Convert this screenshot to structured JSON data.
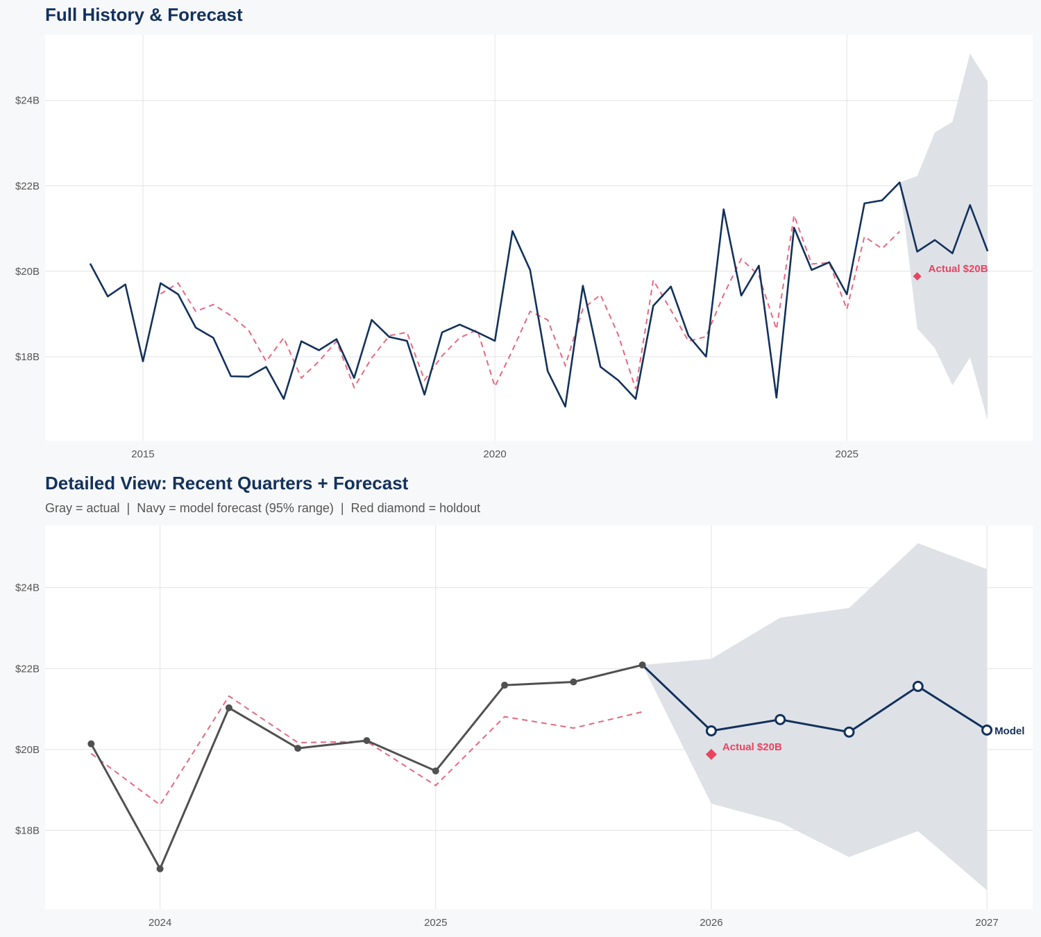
{
  "colors": {
    "actual_navy": "#13315c",
    "actual_gray": "#505050",
    "fitted": "#e8677f",
    "band": "#dce0e6",
    "holdout": "#e8435f",
    "panel": "#ffffff",
    "grid": "#e2e2e2"
  },
  "chart_data": [
    {
      "type": "line",
      "title": "Full History & Forecast",
      "xlim": [
        2013.61,
        2027.64
      ],
      "ylim": [
        16.03,
        25.54
      ],
      "x_ticks": [
        {
          "v": 2015,
          "label": "2015"
        },
        {
          "v": 2020,
          "label": "2020"
        },
        {
          "v": 2025,
          "label": "2025"
        }
      ],
      "y_ticks": [
        {
          "v": 18,
          "label": "$18B"
        },
        {
          "v": 20,
          "label": "$20B"
        },
        {
          "v": 22,
          "label": "$22B"
        },
        {
          "v": 24,
          "label": "$24B"
        }
      ],
      "grid": true,
      "actual": {
        "x": [
          2014.25,
          2014.5,
          2014.75,
          2015,
          2015.25,
          2015.5,
          2015.75,
          2016,
          2016.25,
          2016.5,
          2016.75,
          2017,
          2017.25,
          2017.5,
          2017.75,
          2018,
          2018.25,
          2018.5,
          2018.75,
          2019,
          2019.25,
          2019.5,
          2019.75,
          2020,
          2020.25,
          2020.5,
          2020.75,
          2021,
          2021.25,
          2021.5,
          2021.75,
          2022,
          2022.25,
          2022.5,
          2022.75,
          2023,
          2023.25,
          2023.5,
          2023.75,
          2024,
          2024.25,
          2024.5,
          2024.75,
          2025,
          2025.25,
          2025.5,
          2025.75
        ],
        "y": [
          20.18,
          19.41,
          19.69,
          17.89,
          19.72,
          19.46,
          18.68,
          18.44,
          17.54,
          17.53,
          17.76,
          17.01,
          18.36,
          18.15,
          18.41,
          17.5,
          18.86,
          18.46,
          18.37,
          17.11,
          18.57,
          18.75,
          18.57,
          18.37,
          20.94,
          20.03,
          17.66,
          16.83,
          19.66,
          17.76,
          17.45,
          17.01,
          19.19,
          19.64,
          18.49,
          18.0,
          21.45,
          19.43,
          20.13,
          17.04,
          21.02,
          20.03,
          20.21,
          19.46,
          21.59,
          21.66,
          22.08
        ]
      },
      "fitted": {
        "x": [
          2015.25,
          2015.5,
          2015.75,
          2016,
          2016.25,
          2016.5,
          2016.75,
          2017,
          2017.25,
          2017.5,
          2017.75,
          2018,
          2018.25,
          2018.5,
          2018.75,
          2019,
          2019.25,
          2019.5,
          2019.75,
          2020,
          2020.25,
          2020.5,
          2020.75,
          2021,
          2021.25,
          2021.5,
          2021.75,
          2022,
          2022.25,
          2022.5,
          2022.75,
          2023,
          2023.25,
          2023.5,
          2023.75,
          2024,
          2024.25,
          2024.5,
          2024.75,
          2025,
          2025.25,
          2025.5,
          2025.75
        ],
        "y": [
          19.47,
          19.72,
          19.06,
          19.22,
          18.96,
          18.62,
          17.89,
          18.44,
          17.5,
          17.89,
          18.36,
          17.28,
          17.97,
          18.49,
          18.57,
          17.45,
          18.02,
          18.44,
          18.63,
          17.3,
          18.15,
          19.06,
          18.86,
          17.79,
          19.12,
          19.45,
          18.52,
          17.24,
          19.79,
          19.09,
          18.36,
          18.47,
          19.45,
          20.29,
          19.9,
          18.64,
          21.31,
          20.17,
          20.2,
          19.11,
          20.81,
          20.53,
          20.93
        ]
      },
      "forecast": {
        "x": [
          2025.75,
          2026,
          2026.25,
          2026.5,
          2026.75,
          2027
        ],
        "y": [
          22.08,
          20.46,
          20.73,
          20.42,
          21.55,
          20.47
        ],
        "lower": [
          22.08,
          18.66,
          18.2,
          17.33,
          17.98,
          16.51
        ],
        "upper": [
          22.08,
          22.23,
          23.25,
          23.5,
          25.1,
          24.45
        ]
      },
      "holdout": {
        "x": 2026,
        "y": 19.88,
        "label": "Actual $20B"
      }
    },
    {
      "type": "line",
      "title": "Detailed View: Recent Quarters + Forecast",
      "subtitle": "Gray = actual  |  Navy = model forecast (95% range)  |  Red diamond = holdout",
      "xlim": [
        2023.583,
        2027.166
      ],
      "ylim": [
        16.05,
        25.54
      ],
      "x_ticks": [
        {
          "v": 2024,
          "label": "2024"
        },
        {
          "v": 2025,
          "label": "2025"
        },
        {
          "v": 2026,
          "label": "2026"
        },
        {
          "v": 2027,
          "label": "2027"
        }
      ],
      "y_ticks": [
        {
          "v": 18,
          "label": "$18B"
        },
        {
          "v": 20,
          "label": "$20B"
        },
        {
          "v": 22,
          "label": "$22B"
        },
        {
          "v": 24,
          "label": "$24B"
        }
      ],
      "grid": true,
      "actual": {
        "x": [
          2023.75,
          2024,
          2024.25,
          2024.5,
          2024.75,
          2025,
          2025.25,
          2025.5,
          2025.75
        ],
        "y": [
          20.14,
          17.05,
          21.03,
          20.03,
          20.22,
          19.47,
          21.59,
          21.67,
          22.09
        ]
      },
      "fitted": {
        "x": [
          2023.75,
          2024,
          2024.25,
          2024.5,
          2024.75,
          2025,
          2025.25,
          2025.5,
          2025.75
        ],
        "y": [
          19.9,
          18.63,
          21.32,
          20.17,
          20.2,
          19.11,
          20.81,
          20.53,
          20.93
        ]
      },
      "forecast": {
        "x": [
          2025.75,
          2026,
          2026.25,
          2026.5,
          2026.75,
          2027
        ],
        "y": [
          22.09,
          20.46,
          20.74,
          20.43,
          21.56,
          20.48
        ],
        "lower": [
          22.09,
          18.66,
          18.2,
          17.34,
          17.98,
          16.52
        ],
        "upper": [
          22.09,
          22.24,
          23.26,
          23.5,
          25.1,
          24.46
        ],
        "label": "Model"
      },
      "holdout": {
        "x": 2026,
        "y": 19.88,
        "label": "Actual $20B"
      }
    }
  ]
}
